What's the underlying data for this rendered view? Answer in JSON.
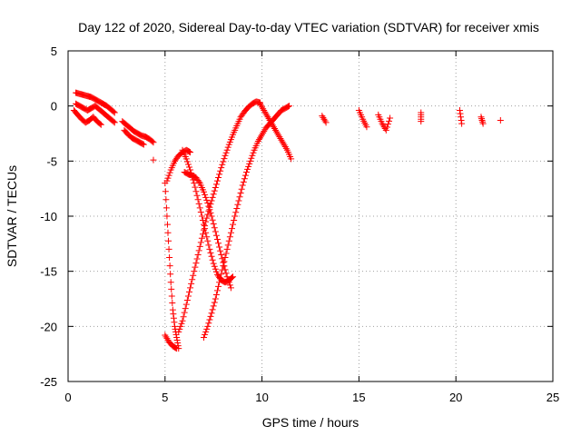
{
  "chart_data": {
    "type": "scatter",
    "title": "Day 122 of 2020, Sidereal Day-to-day VTEC variation (SDTVAR) for receiver xmis",
    "xlabel": "GPS time / hours",
    "ylabel": "SDTVAR / TECUs",
    "xlim": [
      0,
      25
    ],
    "ylim": [
      -25,
      5
    ],
    "xticks": [
      0,
      5,
      10,
      15,
      20,
      25
    ],
    "yticks": [
      5,
      0,
      -5,
      -10,
      -15,
      -20,
      -25
    ],
    "xtick_labels": [
      "0",
      "5",
      "10",
      "15",
      "20",
      "25"
    ],
    "ytick_labels": [
      "5",
      "0",
      "-5",
      "-10",
      "-15",
      "-20",
      "-25"
    ],
    "grid": true,
    "marker": "plus",
    "color": "#ff0000",
    "segments": [
      {
        "name": "early-cluster-a",
        "x": [
          0.4,
          0.6,
          0.8,
          1.0,
          1.2,
          1.4,
          1.6,
          1.8,
          2.0,
          2.2,
          2.4
        ],
        "y": [
          1.2,
          1.1,
          1.0,
          0.9,
          0.8,
          0.6,
          0.4,
          0.2,
          0.0,
          -0.3,
          -0.6
        ]
      },
      {
        "name": "early-cluster-b",
        "x": [
          0.4,
          0.6,
          0.8,
          1.0,
          1.2,
          1.4,
          1.6,
          1.8,
          2.0,
          2.2,
          2.4
        ],
        "y": [
          0.2,
          0.0,
          -0.2,
          -0.4,
          -0.2,
          0.0,
          -0.3,
          -0.6,
          -0.9,
          -1.2,
          -1.5
        ]
      },
      {
        "name": "early-cluster-c",
        "x": [
          0.3,
          0.5,
          0.7,
          0.9,
          1.1,
          1.3,
          1.5,
          1.7
        ],
        "y": [
          -0.4,
          -0.8,
          -1.2,
          -1.5,
          -1.3,
          -1.0,
          -1.4,
          -1.7
        ]
      },
      {
        "name": "early-drift",
        "x": [
          2.8,
          3.0,
          3.2,
          3.4,
          3.6,
          3.8,
          4.0,
          4.2,
          4.4
        ],
        "y": [
          -1.4,
          -1.7,
          -2.0,
          -2.3,
          -2.5,
          -2.7,
          -2.8,
          -3.0,
          -3.3
        ]
      },
      {
        "name": "early-drift-b",
        "x": [
          2.9,
          3.1,
          3.3,
          3.5,
          3.7,
          3.9
        ],
        "y": [
          -2.2,
          -2.6,
          -2.9,
          -3.1,
          -3.3,
          -3.5
        ]
      },
      {
        "name": "isolated-1",
        "x": [
          4.4
        ],
        "y": [
          -4.9
        ]
      },
      {
        "name": "dip-left",
        "x": [
          5.0,
          5.1,
          5.2,
          5.3,
          5.4,
          5.5,
          5.6,
          5.7
        ],
        "y": [
          -7.0,
          -10.0,
          -13.0,
          -16.0,
          -18.5,
          -20.0,
          -21.0,
          -22.0
        ]
      },
      {
        "name": "dip-floor",
        "x": [
          5.0,
          5.2,
          5.4,
          5.6
        ],
        "y": [
          -20.8,
          -21.4,
          -21.8,
          -22.0
        ]
      },
      {
        "name": "arc-rise-a",
        "x": [
          5.7,
          5.9,
          6.1,
          6.3,
          6.5,
          6.7,
          6.9,
          7.1,
          7.3,
          7.5,
          7.7,
          7.9,
          8.1,
          8.3,
          8.5,
          8.7,
          8.9,
          9.1,
          9.3,
          9.5,
          9.7,
          9.9
        ],
        "y": [
          -20.5,
          -19.5,
          -18.0,
          -16.5,
          -15.0,
          -13.5,
          -12.0,
          -10.5,
          -9.2,
          -8.0,
          -6.8,
          -5.6,
          -4.5,
          -3.5,
          -2.6,
          -1.8,
          -1.0,
          -0.5,
          -0.1,
          0.2,
          0.4,
          0.3
        ]
      },
      {
        "name": "arc-rise-b",
        "x": [
          7.0,
          7.2,
          7.4,
          7.6,
          7.8,
          8.0,
          8.2,
          8.4,
          8.6,
          8.8,
          9.0,
          9.2,
          9.4,
          9.6,
          9.8,
          10.0,
          10.2,
          10.4,
          10.6,
          10.8,
          11.0,
          11.2,
          11.4
        ],
        "y": [
          -21.0,
          -20.0,
          -18.8,
          -17.5,
          -16.0,
          -14.5,
          -13.0,
          -11.5,
          -10.0,
          -8.6,
          -7.2,
          -6.0,
          -5.0,
          -4.0,
          -3.2,
          -2.6,
          -2.0,
          -1.6,
          -1.2,
          -0.8,
          -0.4,
          -0.2,
          0.0
        ]
      },
      {
        "name": "arc-fall",
        "x": [
          5.9,
          6.1,
          6.3,
          6.5,
          6.7,
          6.9,
          7.1,
          7.3,
          7.5,
          7.7,
          7.9,
          8.1,
          8.3,
          8.5
        ],
        "y": [
          -4.0,
          -4.8,
          -5.8,
          -7.0,
          -8.5,
          -10.0,
          -11.5,
          -13.0,
          -14.3,
          -15.3,
          -15.8,
          -16.0,
          -15.8,
          -15.5
        ]
      },
      {
        "name": "cross-x",
        "x": [
          9.9,
          10.1,
          10.3,
          10.5,
          10.7,
          10.9,
          11.1,
          11.3,
          11.5
        ],
        "y": [
          0.2,
          -0.4,
          -1.0,
          -1.6,
          -2.2,
          -2.8,
          -3.4,
          -4.0,
          -4.8
        ]
      },
      {
        "name": "right-loop",
        "x": [
          6.0,
          6.2,
          6.4,
          6.6,
          6.8,
          7.0,
          7.2,
          7.4,
          7.6,
          7.8,
          8.0,
          8.2,
          8.4
        ],
        "y": [
          -6.0,
          -6.2,
          -6.3,
          -6.5,
          -7.0,
          -7.8,
          -8.8,
          -10.0,
          -11.4,
          -12.8,
          -14.2,
          -15.5,
          -16.5
        ]
      },
      {
        "name": "left-loop",
        "x": [
          5.1,
          5.3,
          5.5,
          5.7,
          5.9,
          6.1,
          6.3
        ],
        "y": [
          -6.8,
          -5.8,
          -5.0,
          -4.5,
          -4.2,
          -4.0,
          -4.2
        ]
      },
      {
        "name": "late-a",
        "x": [
          13.1,
          13.3
        ],
        "y": [
          -0.9,
          -1.5
        ]
      },
      {
        "name": "late-b",
        "x": [
          15.0,
          15.2,
          15.4
        ],
        "y": [
          -0.4,
          -1.2,
          -1.9
        ]
      },
      {
        "name": "late-c",
        "x": [
          16.0,
          16.2,
          16.4,
          16.6
        ],
        "y": [
          -0.8,
          -1.6,
          -2.2,
          -1.1
        ]
      },
      {
        "name": "late-d",
        "x": [
          18.2,
          18.2
        ],
        "y": [
          -0.6,
          -1.4
        ]
      },
      {
        "name": "late-e",
        "x": [
          20.2,
          20.3
        ],
        "y": [
          -0.4,
          -1.6
        ]
      },
      {
        "name": "late-f",
        "x": [
          21.3,
          21.4
        ],
        "y": [
          -1.0,
          -1.6
        ]
      },
      {
        "name": "late-g",
        "x": [
          22.3
        ],
        "y": [
          -1.3
        ]
      }
    ]
  }
}
